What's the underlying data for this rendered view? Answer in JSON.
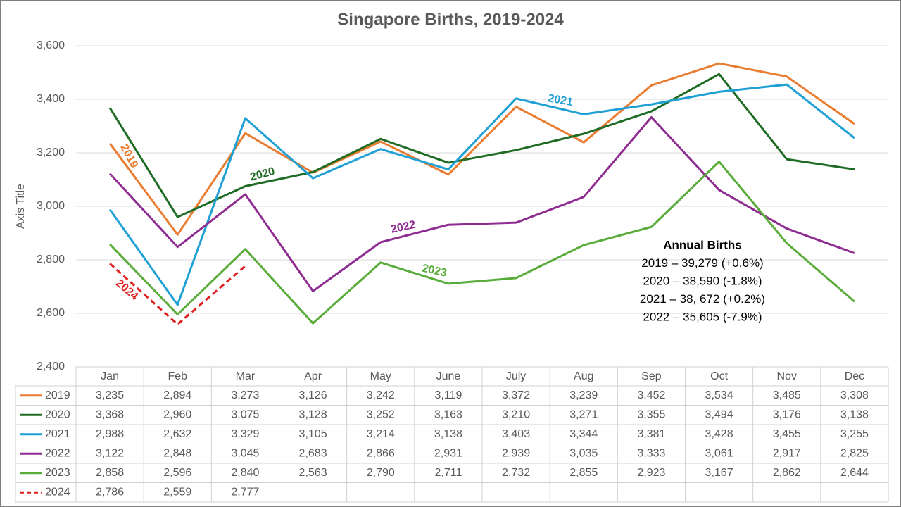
{
  "chart_data": {
    "type": "line",
    "title": "Singapore Births, 2019-2024",
    "y_label": "Axis Title",
    "categories": [
      "Jan",
      "Feb",
      "Mar",
      "Apr",
      "May",
      "June",
      "July",
      "Aug",
      "Sep",
      "Oct",
      "Nov",
      "Dec"
    ],
    "ylim": [
      2400,
      3600
    ],
    "yticks": [
      {
        "value": 2400,
        "label": "2,400"
      },
      {
        "value": 2600,
        "label": "2,600"
      },
      {
        "value": 2800,
        "label": "2,800"
      },
      {
        "value": 3000,
        "label": "3,000"
      },
      {
        "value": 3200,
        "label": "3,200"
      },
      {
        "value": 3400,
        "label": "3,400"
      },
      {
        "value": 3600,
        "label": "3,600"
      }
    ],
    "grid": true,
    "series": [
      {
        "name": "2019",
        "color": "#e97c30",
        "style": "solid",
        "values": [
          3235,
          2894,
          3273,
          3126,
          3242,
          3119,
          3372,
          3239,
          3452,
          3534,
          3485,
          3308
        ],
        "value_labels": [
          "3,235",
          "2,894",
          "3,273",
          "3,126",
          "3,242",
          "3,119",
          "3,372",
          "3,239",
          "3,452",
          "3,534",
          "3,485",
          "3,308"
        ]
      },
      {
        "name": "2020",
        "color": "#1e6b24",
        "style": "solid",
        "values": [
          3368,
          2960,
          3075,
          3128,
          3252,
          3163,
          3210,
          3271,
          3355,
          3494,
          3176,
          3138
        ],
        "value_labels": [
          "3,368",
          "2,960",
          "3,075",
          "3,128",
          "3,252",
          "3,163",
          "3,210",
          "3,271",
          "3,355",
          "3,494",
          "3,176",
          "3,138"
        ]
      },
      {
        "name": "2021",
        "color": "#1ea0d4",
        "style": "solid",
        "values": [
          2988,
          2632,
          3329,
          3105,
          3214,
          3138,
          3403,
          3344,
          3381,
          3428,
          3455,
          3255
        ],
        "value_labels": [
          "2,988",
          "2,632",
          "3,329",
          "3,105",
          "3,214",
          "3,138",
          "3,403",
          "3,344",
          "3,381",
          "3,428",
          "3,455",
          "3,255"
        ]
      },
      {
        "name": "2022",
        "color": "#8e2c92",
        "style": "solid",
        "values": [
          3122,
          2848,
          3045,
          2683,
          2866,
          2931,
          2939,
          3035,
          3333,
          3061,
          2917,
          2825
        ],
        "value_labels": [
          "3,122",
          "2,848",
          "3,045",
          "2,683",
          "2,866",
          "2,931",
          "2,939",
          "3,035",
          "3,333",
          "3,061",
          "2,917",
          "2,825"
        ]
      },
      {
        "name": "2023",
        "color": "#5aac3a",
        "style": "solid",
        "values": [
          2858,
          2596,
          2840,
          2563,
          2790,
          2711,
          2732,
          2855,
          2923,
          3167,
          2862,
          2644
        ],
        "value_labels": [
          "2,858",
          "2,596",
          "2,840",
          "2,563",
          "2,790",
          "2,711",
          "2,732",
          "2,855",
          "2,923",
          "3,167",
          "2,862",
          "2,644"
        ]
      },
      {
        "name": "2024",
        "color": "#e02020",
        "style": "dashed",
        "values": [
          2786,
          2559,
          2777,
          null,
          null,
          null,
          null,
          null,
          null,
          null,
          null,
          null
        ],
        "value_labels": [
          "2,786",
          "2,559",
          "2,777",
          null,
          null,
          null,
          null,
          null,
          null,
          null,
          null,
          null
        ]
      }
    ],
    "annotations": [
      "Annual Births",
      "2019 – 39,279 (+0.6%)",
      "2020 – 38,590 (-1.8%)",
      "2021 – 38, 672 (+0.2%)",
      "2022 – 35,605 (-7.9%)"
    ]
  }
}
